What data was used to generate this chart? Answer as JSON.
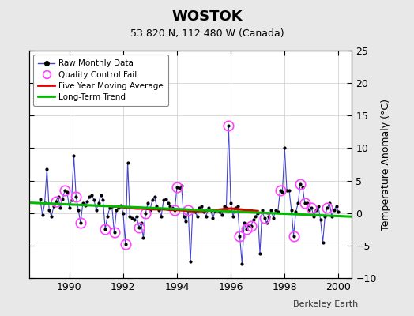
{
  "title": "WOSTOK",
  "subtitle": "53.820 N, 112.480 W (Canada)",
  "ylabel": "Temperature Anomaly (°C)",
  "credit": "Berkeley Earth",
  "xlim": [
    1988.5,
    2000.5
  ],
  "ylim": [
    -10,
    25
  ],
  "yticks": [
    -10,
    -5,
    0,
    5,
    10,
    15,
    20,
    25
  ],
  "xticks": [
    1990,
    1992,
    1994,
    1996,
    1998,
    2000
  ],
  "bg_color": "#e8e8e8",
  "plot_bg_color": "#ffffff",
  "raw_color": "#4444cc",
  "raw_marker_color": "#000000",
  "qc_color": "#ff44ff",
  "moving_avg_color": "#dd0000",
  "trend_color": "#00bb00",
  "raw_data": [
    [
      1988.917,
      2.1
    ],
    [
      1989.0,
      -0.3
    ],
    [
      1989.083,
      1.5
    ],
    [
      1989.167,
      6.8
    ],
    [
      1989.25,
      0.5
    ],
    [
      1989.333,
      -0.5
    ],
    [
      1989.417,
      1.0
    ],
    [
      1989.5,
      1.8
    ],
    [
      1989.583,
      2.5
    ],
    [
      1989.667,
      0.8
    ],
    [
      1989.75,
      2.2
    ],
    [
      1989.833,
      3.5
    ],
    [
      1989.917,
      3.2
    ],
    [
      1990.0,
      0.8
    ],
    [
      1990.083,
      2.0
    ],
    [
      1990.167,
      8.8
    ],
    [
      1990.25,
      2.5
    ],
    [
      1990.333,
      0.5
    ],
    [
      1990.417,
      -1.5
    ],
    [
      1990.5,
      1.5
    ],
    [
      1990.583,
      1.2
    ],
    [
      1990.667,
      1.8
    ],
    [
      1990.75,
      2.5
    ],
    [
      1990.833,
      2.8
    ],
    [
      1990.917,
      2.0
    ],
    [
      1991.0,
      0.5
    ],
    [
      1991.083,
      1.5
    ],
    [
      1991.167,
      2.8
    ],
    [
      1991.25,
      2.0
    ],
    [
      1991.333,
      -2.5
    ],
    [
      1991.417,
      -0.5
    ],
    [
      1991.5,
      0.8
    ],
    [
      1991.583,
      1.0
    ],
    [
      1991.667,
      -3.0
    ],
    [
      1991.75,
      0.5
    ],
    [
      1991.833,
      0.8
    ],
    [
      1991.917,
      1.2
    ],
    [
      1992.0,
      0.0
    ],
    [
      1992.083,
      -4.8
    ],
    [
      1992.167,
      7.8
    ],
    [
      1992.25,
      -0.5
    ],
    [
      1992.333,
      -0.8
    ],
    [
      1992.417,
      -1.0
    ],
    [
      1992.5,
      -0.5
    ],
    [
      1992.583,
      -2.2
    ],
    [
      1992.667,
      -1.5
    ],
    [
      1992.75,
      -3.8
    ],
    [
      1992.833,
      0.0
    ],
    [
      1992.917,
      1.5
    ],
    [
      1993.0,
      0.5
    ],
    [
      1993.083,
      2.0
    ],
    [
      1993.167,
      2.5
    ],
    [
      1993.25,
      1.0
    ],
    [
      1993.333,
      0.5
    ],
    [
      1993.417,
      -0.5
    ],
    [
      1993.5,
      2.0
    ],
    [
      1993.583,
      2.2
    ],
    [
      1993.667,
      1.5
    ],
    [
      1993.75,
      1.0
    ],
    [
      1993.833,
      0.8
    ],
    [
      1993.917,
      0.5
    ],
    [
      1994.0,
      4.0
    ],
    [
      1994.083,
      3.8
    ],
    [
      1994.167,
      4.2
    ],
    [
      1994.25,
      -0.5
    ],
    [
      1994.333,
      -1.2
    ],
    [
      1994.417,
      0.5
    ],
    [
      1994.5,
      -7.5
    ],
    [
      1994.583,
      0.5
    ],
    [
      1994.667,
      0.2
    ],
    [
      1994.75,
      -0.5
    ],
    [
      1994.833,
      0.8
    ],
    [
      1994.917,
      1.0
    ],
    [
      1995.0,
      0.2
    ],
    [
      1995.083,
      -0.5
    ],
    [
      1995.167,
      0.8
    ],
    [
      1995.25,
      0.5
    ],
    [
      1995.333,
      -0.8
    ],
    [
      1995.417,
      0.3
    ],
    [
      1995.5,
      0.5
    ],
    [
      1995.583,
      0.2
    ],
    [
      1995.667,
      -0.3
    ],
    [
      1995.75,
      1.0
    ],
    [
      1995.833,
      0.8
    ],
    [
      1995.917,
      13.5
    ],
    [
      1996.0,
      1.5
    ],
    [
      1996.083,
      -0.5
    ],
    [
      1996.167,
      0.8
    ],
    [
      1996.25,
      1.0
    ],
    [
      1996.333,
      -3.5
    ],
    [
      1996.417,
      -7.8
    ],
    [
      1996.5,
      -1.5
    ],
    [
      1996.583,
      -2.5
    ],
    [
      1996.667,
      -1.8
    ],
    [
      1996.75,
      -2.0
    ],
    [
      1996.833,
      -1.0
    ],
    [
      1996.917,
      -0.5
    ],
    [
      1997.0,
      0.0
    ],
    [
      1997.083,
      -6.2
    ],
    [
      1997.167,
      0.5
    ],
    [
      1997.25,
      -0.8
    ],
    [
      1997.333,
      -1.5
    ],
    [
      1997.417,
      -0.5
    ],
    [
      1997.5,
      0.5
    ],
    [
      1997.583,
      -0.8
    ],
    [
      1997.667,
      0.5
    ],
    [
      1997.75,
      0.2
    ],
    [
      1997.833,
      3.5
    ],
    [
      1997.917,
      3.2
    ],
    [
      1998.0,
      10.0
    ],
    [
      1998.083,
      3.5
    ],
    [
      1998.167,
      3.5
    ],
    [
      1998.25,
      0.5
    ],
    [
      1998.333,
      -3.5
    ],
    [
      1998.417,
      0.2
    ],
    [
      1998.5,
      1.5
    ],
    [
      1998.583,
      4.5
    ],
    [
      1998.667,
      4.0
    ],
    [
      1998.75,
      1.5
    ],
    [
      1998.833,
      1.5
    ],
    [
      1998.917,
      0.5
    ],
    [
      1999.0,
      0.8
    ],
    [
      1999.083,
      -0.5
    ],
    [
      1999.167,
      0.5
    ],
    [
      1999.25,
      1.0
    ],
    [
      1999.333,
      -1.0
    ],
    [
      1999.417,
      -4.5
    ],
    [
      1999.5,
      -0.5
    ],
    [
      1999.583,
      0.8
    ],
    [
      1999.667,
      1.5
    ],
    [
      1999.75,
      -0.5
    ],
    [
      1999.833,
      0.5
    ],
    [
      1999.917,
      1.0
    ],
    [
      2000.0,
      0.2
    ]
  ],
  "qc_fail_x": [
    1989.5,
    1989.833,
    1990.25,
    1990.417,
    1991.333,
    1991.667,
    1992.083,
    1992.583,
    1992.833,
    1993.917,
    1994.0,
    1994.417,
    1995.917,
    1996.333,
    1996.583,
    1996.75,
    1997.25,
    1997.833,
    1998.333,
    1998.583,
    1998.75,
    1999.0,
    1999.583
  ],
  "qc_fail_y": [
    1.8,
    3.5,
    2.5,
    -1.5,
    -2.5,
    -3.0,
    -4.8,
    -2.2,
    0.0,
    0.5,
    4.0,
    0.5,
    13.5,
    -3.5,
    -2.5,
    -2.0,
    -0.8,
    3.5,
    -3.5,
    4.5,
    1.5,
    0.8,
    0.8
  ],
  "moving_avg_x": [
    1991.5,
    1991.75,
    1992.0,
    1992.25,
    1992.5,
    1992.75,
    1993.0,
    1993.25,
    1993.5,
    1993.75,
    1994.0,
    1994.25,
    1994.5,
    1994.75,
    1995.0,
    1995.25,
    1995.5,
    1995.75,
    1996.0,
    1996.25,
    1996.5,
    1996.75,
    1997.0
  ],
  "moving_avg_y": [
    1.1,
    1.0,
    0.9,
    0.8,
    0.7,
    0.7,
    0.6,
    0.6,
    0.6,
    0.5,
    0.5,
    0.4,
    0.3,
    0.3,
    0.3,
    0.4,
    0.5,
    0.6,
    0.7,
    0.6,
    0.5,
    0.4,
    0.3
  ],
  "trend_x": [
    1988.5,
    2000.5
  ],
  "trend_y": [
    1.6,
    -0.55
  ]
}
